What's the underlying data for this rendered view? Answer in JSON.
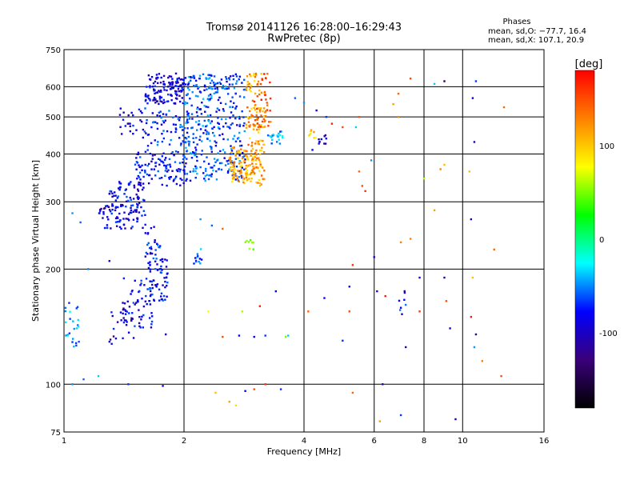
{
  "chart_data": {
    "type": "scatter",
    "title": "Tromsø 20141126 16:28:00–16:29:43",
    "subtitle": "RwPretec (8p)",
    "xlabel": "Frequency [MHz]",
    "ylabel": "Stationary phase Virtual Height [km]",
    "x_scale": "log",
    "y_scale": "log",
    "xlim": [
      1,
      16
    ],
    "ylim": [
      75,
      750
    ],
    "x_ticks": [
      1,
      2,
      4,
      6,
      8,
      10,
      16
    ],
    "y_ticks": [
      75,
      100,
      200,
      300,
      400,
      500,
      600,
      750
    ],
    "x_gridlines": [
      2,
      4,
      6,
      8,
      10
    ],
    "y_gridlines": [
      100,
      200,
      300,
      400,
      500,
      600
    ],
    "grid": true,
    "legend": {
      "title": "Phases",
      "stat_line_0": "mean, sd,O: −77.7, 16.4",
      "stat_line_x": "mean, sd,X: 107.1, 20.9"
    },
    "colorbar": {
      "label": "[deg]",
      "range": [
        -180,
        180
      ],
      "ticks": [
        100,
        0,
        -100
      ],
      "colors": [
        "#ff0000",
        "#ff8000",
        "#ffff00",
        "#00ff00",
        "#00ffff",
        "#0000ff",
        "#3a007a",
        "#000000"
      ]
    },
    "clusters": [
      {
        "f": [
          1.6,
          2.0
        ],
        "h": [
          540,
          650
        ],
        "phase": -120,
        "count": 140
      },
      {
        "f": [
          1.38,
          1.62
        ],
        "h": [
          440,
          530
        ],
        "phase": -115,
        "count": 30
      },
      {
        "f": [
          1.62,
          2.1
        ],
        "h": [
          420,
          520
        ],
        "phase": -105,
        "count": 70
      },
      {
        "f": [
          1.5,
          2.05
        ],
        "h": [
          330,
          410
        ],
        "phase": -110,
        "count": 110
      },
      {
        "f": [
          1.3,
          1.6
        ],
        "h": [
          290,
          340
        ],
        "phase": -115,
        "count": 60
      },
      {
        "f": [
          1.22,
          1.6
        ],
        "h": [
          255,
          295
        ],
        "phase": -120,
        "count": 80
      },
      {
        "f": [
          1.6,
          1.75
        ],
        "h": [
          215,
          260
        ],
        "phase": -110,
        "count": 25
      },
      {
        "f": [
          1.62,
          1.82
        ],
        "h": [
          165,
          215
        ],
        "phase": -105,
        "count": 60
      },
      {
        "f": [
          1.4,
          1.7
        ],
        "h": [
          140,
          190
        ],
        "phase": -115,
        "count": 60
      },
      {
        "f": [
          1.3,
          1.5
        ],
        "h": [
          125,
          160
        ],
        "phase": -125,
        "count": 25
      },
      {
        "f": [
          1.0,
          1.1
        ],
        "h": [
          125,
          165
        ],
        "phase": -80,
        "count": 25
      },
      {
        "f": [
          2.0,
          2.45
        ],
        "h": [
          340,
          650
        ],
        "phase": -95,
        "count": 220
      },
      {
        "f": [
          2.45,
          2.85
        ],
        "h": [
          340,
          650
        ],
        "phase": -100,
        "count": 140
      },
      {
        "f": [
          2.6,
          3.0
        ],
        "h": [
          335,
          420
        ],
        "phase": 115,
        "count": 90
      },
      {
        "f": [
          2.85,
          3.2
        ],
        "h": [
          330,
          650
        ],
        "phase": 120,
        "count": 140
      },
      {
        "f": [
          3.0,
          3.3
        ],
        "h": [
          470,
          650
        ],
        "phase": 150,
        "count": 40
      },
      {
        "f": [
          3.25,
          3.55
        ],
        "h": [
          425,
          460
        ],
        "phase": -80,
        "count": 20
      },
      {
        "f": [
          2.1,
          2.25
        ],
        "h": [
          205,
          230
        ],
        "phase": -90,
        "count": 12
      },
      {
        "f": [
          2.85,
          3.0
        ],
        "h": [
          225,
          240
        ],
        "phase": 40,
        "count": 8
      },
      {
        "f": [
          4.3,
          4.55
        ],
        "h": [
          425,
          450
        ],
        "phase": -125,
        "count": 10
      },
      {
        "f": [
          4.1,
          4.3
        ],
        "h": [
          440,
          470
        ],
        "phase": 100,
        "count": 8
      },
      {
        "f": [
          6.9,
          7.2
        ],
        "h": [
          150,
          185
        ],
        "phase": -110,
        "count": 8
      }
    ],
    "scattered_points": [
      {
        "x": 1.05,
        "h": 280,
        "phase": -80
      },
      {
        "x": 1.1,
        "h": 265,
        "phase": -90
      },
      {
        "x": 1.15,
        "h": 200,
        "phase": -85
      },
      {
        "x": 1.3,
        "h": 210,
        "phase": -120
      },
      {
        "x": 1.05,
        "h": 100,
        "phase": -80
      },
      {
        "x": 1.12,
        "h": 103,
        "phase": -90
      },
      {
        "x": 1.22,
        "h": 105,
        "phase": -70
      },
      {
        "x": 1.45,
        "h": 100,
        "phase": -100
      },
      {
        "x": 1.77,
        "h": 99,
        "phase": -125
      },
      {
        "x": 1.8,
        "h": 135,
        "phase": -120
      },
      {
        "x": 2.2,
        "h": 270,
        "phase": -80
      },
      {
        "x": 2.35,
        "h": 260,
        "phase": -90
      },
      {
        "x": 2.5,
        "h": 255,
        "phase": 140
      },
      {
        "x": 2.4,
        "h": 95,
        "phase": 110
      },
      {
        "x": 2.6,
        "h": 90,
        "phase": 120
      },
      {
        "x": 2.7,
        "h": 88,
        "phase": 100
      },
      {
        "x": 2.85,
        "h": 96,
        "phase": -110
      },
      {
        "x": 3.0,
        "h": 97,
        "phase": 150
      },
      {
        "x": 3.2,
        "h": 100,
        "phase": 160
      },
      {
        "x": 3.5,
        "h": 97,
        "phase": -100
      },
      {
        "x": 2.5,
        "h": 133,
        "phase": 150
      },
      {
        "x": 2.75,
        "h": 134,
        "phase": -110
      },
      {
        "x": 3.0,
        "h": 133,
        "phase": -120
      },
      {
        "x": 3.2,
        "h": 134,
        "phase": -100
      },
      {
        "x": 3.6,
        "h": 133,
        "phase": 40
      },
      {
        "x": 3.65,
        "h": 134,
        "phase": -70
      },
      {
        "x": 2.3,
        "h": 155,
        "phase": 90
      },
      {
        "x": 2.8,
        "h": 155,
        "phase": 60
      },
      {
        "x": 3.1,
        "h": 160,
        "phase": 170
      },
      {
        "x": 3.4,
        "h": 175,
        "phase": -110
      },
      {
        "x": 4.1,
        "h": 155,
        "phase": 140
      },
      {
        "x": 4.5,
        "h": 168,
        "phase": -110
      },
      {
        "x": 5.2,
        "h": 180,
        "phase": -110
      },
      {
        "x": 5.2,
        "h": 155,
        "phase": 150
      },
      {
        "x": 5.0,
        "h": 130,
        "phase": -100
      },
      {
        "x": 5.3,
        "h": 95,
        "phase": 140
      },
      {
        "x": 6.1,
        "h": 175,
        "phase": -130
      },
      {
        "x": 6.4,
        "h": 170,
        "phase": 170
      },
      {
        "x": 6.3,
        "h": 100,
        "phase": -130
      },
      {
        "x": 6.2,
        "h": 80,
        "phase": 120
      },
      {
        "x": 7.0,
        "h": 83,
        "phase": -100
      },
      {
        "x": 7.2,
        "h": 125,
        "phase": -140
      },
      {
        "x": 7.8,
        "h": 155,
        "phase": 160
      },
      {
        "x": 7.8,
        "h": 190,
        "phase": -120
      },
      {
        "x": 9.0,
        "h": 190,
        "phase": -140
      },
      {
        "x": 9.1,
        "h": 165,
        "phase": 150
      },
      {
        "x": 9.3,
        "h": 140,
        "phase": -120
      },
      {
        "x": 9.6,
        "h": 81,
        "phase": -130
      },
      {
        "x": 10.5,
        "h": 150,
        "phase": 170
      },
      {
        "x": 10.6,
        "h": 190,
        "phase": 110
      },
      {
        "x": 10.8,
        "h": 135,
        "phase": -140
      },
      {
        "x": 10.7,
        "h": 125,
        "phase": -80
      },
      {
        "x": 11.2,
        "h": 115,
        "phase": 130
      },
      {
        "x": 12.5,
        "h": 105,
        "phase": 150
      },
      {
        "x": 12.0,
        "h": 225,
        "phase": 140
      },
      {
        "x": 10.5,
        "h": 270,
        "phase": -130
      },
      {
        "x": 10.4,
        "h": 360,
        "phase": 110
      },
      {
        "x": 10.7,
        "h": 430,
        "phase": -130
      },
      {
        "x": 10.6,
        "h": 560,
        "phase": -120
      },
      {
        "x": 10.8,
        "h": 620,
        "phase": -100
      },
      {
        "x": 12.7,
        "h": 530,
        "phase": 140
      },
      {
        "x": 8.5,
        "h": 610,
        "phase": -70
      },
      {
        "x": 9.0,
        "h": 620,
        "phase": -160
      },
      {
        "x": 7.4,
        "h": 630,
        "phase": 150
      },
      {
        "x": 6.9,
        "h": 575,
        "phase": 140
      },
      {
        "x": 6.9,
        "h": 500,
        "phase": 130
      },
      {
        "x": 6.7,
        "h": 540,
        "phase": 120
      },
      {
        "x": 5.5,
        "h": 500,
        "phase": 150
      },
      {
        "x": 5.4,
        "h": 470,
        "phase": -70
      },
      {
        "x": 5.5,
        "h": 360,
        "phase": 140
      },
      {
        "x": 5.6,
        "h": 330,
        "phase": 150
      },
      {
        "x": 5.9,
        "h": 385,
        "phase": -80
      },
      {
        "x": 5.7,
        "h": 320,
        "phase": 160
      },
      {
        "x": 6.0,
        "h": 215,
        "phase": -130
      },
      {
        "x": 5.3,
        "h": 205,
        "phase": 160
      },
      {
        "x": 7.0,
        "h": 235,
        "phase": 130
      },
      {
        "x": 7.4,
        "h": 240,
        "phase": 130
      },
      {
        "x": 8.0,
        "h": 345,
        "phase": 60
      },
      {
        "x": 8.5,
        "h": 285,
        "phase": 120
      },
      {
        "x": 8.8,
        "h": 365,
        "phase": 130
      },
      {
        "x": 9.0,
        "h": 375,
        "phase": 110
      },
      {
        "x": 4.3,
        "h": 520,
        "phase": -120
      },
      {
        "x": 4.55,
        "h": 500,
        "phase": -100
      },
      {
        "x": 4.7,
        "h": 480,
        "phase": 170
      },
      {
        "x": 5.0,
        "h": 470,
        "phase": 150
      },
      {
        "x": 4.2,
        "h": 410,
        "phase": -110
      },
      {
        "x": 3.8,
        "h": 560,
        "phase": -90
      },
      {
        "x": 4.0,
        "h": 545,
        "phase": -80
      }
    ]
  }
}
